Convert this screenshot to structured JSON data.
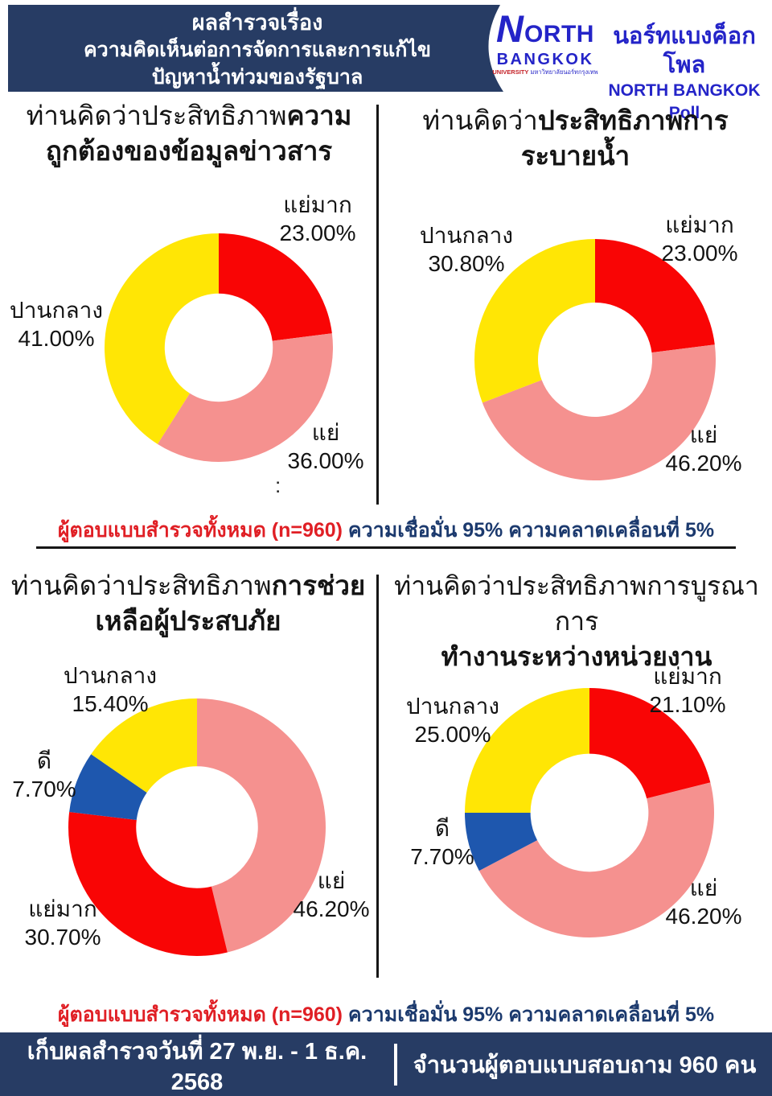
{
  "header": {
    "banner_bg": "#273c64",
    "banner_line1": "ผลสำรวจเรื่อง",
    "banner_line2": "ความคิดเห็นต่อการจัดการและการแก้ไข",
    "banner_line3": "ปัญหาน้ำท่วมของรัฐบาล",
    "logo": {
      "n_letter": "N",
      "orth": "ORTH",
      "bangkok": "BANGKOK",
      "subline_en": "UNIVERSITY",
      "subline_th": "มหาวิทยาลัยนอร์ทกรุงเทพ",
      "brand_color": "#2424c8"
    },
    "poll_name_th": "นอร์ทแบงค็อกโพล",
    "poll_name_en": "NORTH BANGKOK Poll"
  },
  "titles": [
    {
      "normal": "ท่านคิดว่าประสิทธิภาพ",
      "bold": "ความ",
      "line2": "ถูกต้องของข้อมูลข่าวสาร"
    },
    {
      "normal": "ท่านคิดว่า",
      "bold": "ประสิทธิภาพการ",
      "line2": "ระบายน้ำ"
    },
    {
      "normal": "ท่านคิดว่าประสิทธิภาพ",
      "bold": "การช่วย",
      "line2": "เหลือผู้ประสบภัย"
    },
    {
      "normal": "ท่านคิดว่าประสิทธิภาพการบูรณาการ",
      "bold": "",
      "line2": "ทำงานระหว่างหน่วยงาน"
    }
  ],
  "chart_data": [
    {
      "type": "pie",
      "subtype": "donut",
      "title": "ท่านคิดว่าประสิทธิภาพความถูกต้องของข้อมูลข่าวสาร",
      "start_angle_deg": 0,
      "direction": "clockwise",
      "hole_ratio": 0.47,
      "slices": [
        {
          "label": "แย่มาก",
          "value": 23.0,
          "display": "23.00%",
          "color": "#f90505"
        },
        {
          "label": "แย่",
          "value": 36.0,
          "display": "36.00%",
          "color": "#f5918f"
        },
        {
          "label": "ปานกลาง",
          "value": 41.0,
          "display": "41.00%",
          "color": "#ffe605"
        }
      ]
    },
    {
      "type": "pie",
      "subtype": "donut",
      "title": "ท่านคิดว่าประสิทธิภาพการระบายน้ำ",
      "start_angle_deg": 0,
      "direction": "clockwise",
      "hole_ratio": 0.47,
      "slices": [
        {
          "label": "แย่มาก",
          "value": 23.0,
          "display": "23.00%",
          "color": "#f90505"
        },
        {
          "label": "แย่",
          "value": 46.2,
          "display": "46.20%",
          "color": "#f5918f"
        },
        {
          "label": "ปานกลาง",
          "value": 30.8,
          "display": "30.80%",
          "color": "#ffe605"
        }
      ]
    },
    {
      "type": "pie",
      "subtype": "donut",
      "title": "ท่านคิดว่าประสิทธิภาพการช่วยเหลือผู้ประสบภัย",
      "start_angle_deg": 0,
      "direction": "clockwise",
      "hole_ratio": 0.47,
      "slices": [
        {
          "label": "แย่",
          "value": 46.2,
          "display": "46.20%",
          "color": "#f5918f"
        },
        {
          "label": "แย่มาก",
          "value": 30.7,
          "display": "30.70%",
          "color": "#f90505"
        },
        {
          "label": "ดี",
          "value": 7.7,
          "display": "7.70%",
          "color": "#1e57ae"
        },
        {
          "label": "ปานกลาง",
          "value": 15.4,
          "display": "15.40%",
          "color": "#ffe605"
        }
      ]
    },
    {
      "type": "pie",
      "subtype": "donut",
      "title": "ท่านคิดว่าประสิทธิภาพการบูรณาการทำงานระหว่างหน่วยงาน",
      "start_angle_deg": 0,
      "direction": "clockwise",
      "hole_ratio": 0.47,
      "slices": [
        {
          "label": "แย่มาก",
          "value": 21.1,
          "display": "21.10%",
          "color": "#f90505"
        },
        {
          "label": "แย่",
          "value": 46.2,
          "display": "46.20%",
          "color": "#f5918f"
        },
        {
          "label": "ดี",
          "value": 7.7,
          "display": "7.70%",
          "color": "#1e57ae"
        },
        {
          "label": "ปานกลาง",
          "value": 25.0,
          "display": "25.00%",
          "color": "#ffe605"
        }
      ]
    }
  ],
  "notes": {
    "sample": "ผู้ตอบแบบสำรวจทั้งหมด (n=960)",
    "confidence": " ความเชื่อมั่น 95% ความคลาดเคลื่อนที่ 5%"
  },
  "artifact": {
    "colon": ":"
  },
  "footer": {
    "survey_date": "เก็บผลสำรวจวันที่ 27 พ.ย. - 1 ธ.ค. 2568",
    "respondents": "จำนวนผู้ตอบแบบสอบถาม 960 คน"
  }
}
